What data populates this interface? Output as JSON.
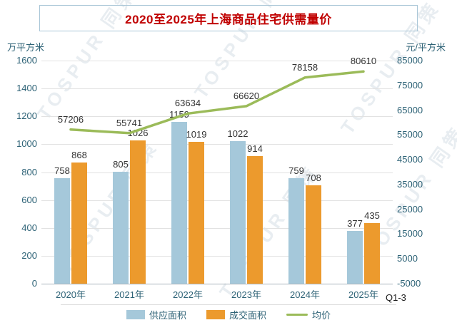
{
  "title": "2020至2025年上海商品住宅供需量价",
  "annotation": "Q1-3",
  "watermark": "TOSPUR 同策",
  "left_axis": {
    "label": "万平方米",
    "ticks": [
      1600,
      1400,
      1200,
      1000,
      800,
      600,
      400,
      200,
      0
    ]
  },
  "right_axis": {
    "label": "元/平方米",
    "ticks": [
      85000,
      75000,
      65000,
      55000,
      45000,
      35000,
      25000,
      15000,
      5000,
      -5000
    ]
  },
  "chart_data": {
    "type": "bar",
    "combo": "bar+line",
    "title": "2020至2025年上海商品住宅供需量价",
    "categories": [
      "2020年",
      "2021年",
      "2022年",
      "2023年",
      "2024年",
      "2025年"
    ],
    "left_ylim": [
      0,
      1600
    ],
    "right_ylim": [
      -5000,
      85000
    ],
    "grid": true,
    "legend_position": "bottom",
    "series": [
      {
        "name": "供应面积",
        "type": "bar",
        "axis": "left",
        "color": "#a5c8da",
        "values": [
          758,
          805,
          1159,
          1022,
          759,
          377
        ]
      },
      {
        "name": "成交面积",
        "type": "bar",
        "axis": "left",
        "color": "#ec9a2d",
        "values": [
          868,
          1026,
          1019,
          914,
          708,
          435
        ]
      },
      {
        "name": "均价",
        "type": "line",
        "axis": "right",
        "color": "#9bbb59",
        "values": [
          57206,
          55741,
          63634,
          66620,
          78158,
          80610
        ]
      }
    ]
  }
}
